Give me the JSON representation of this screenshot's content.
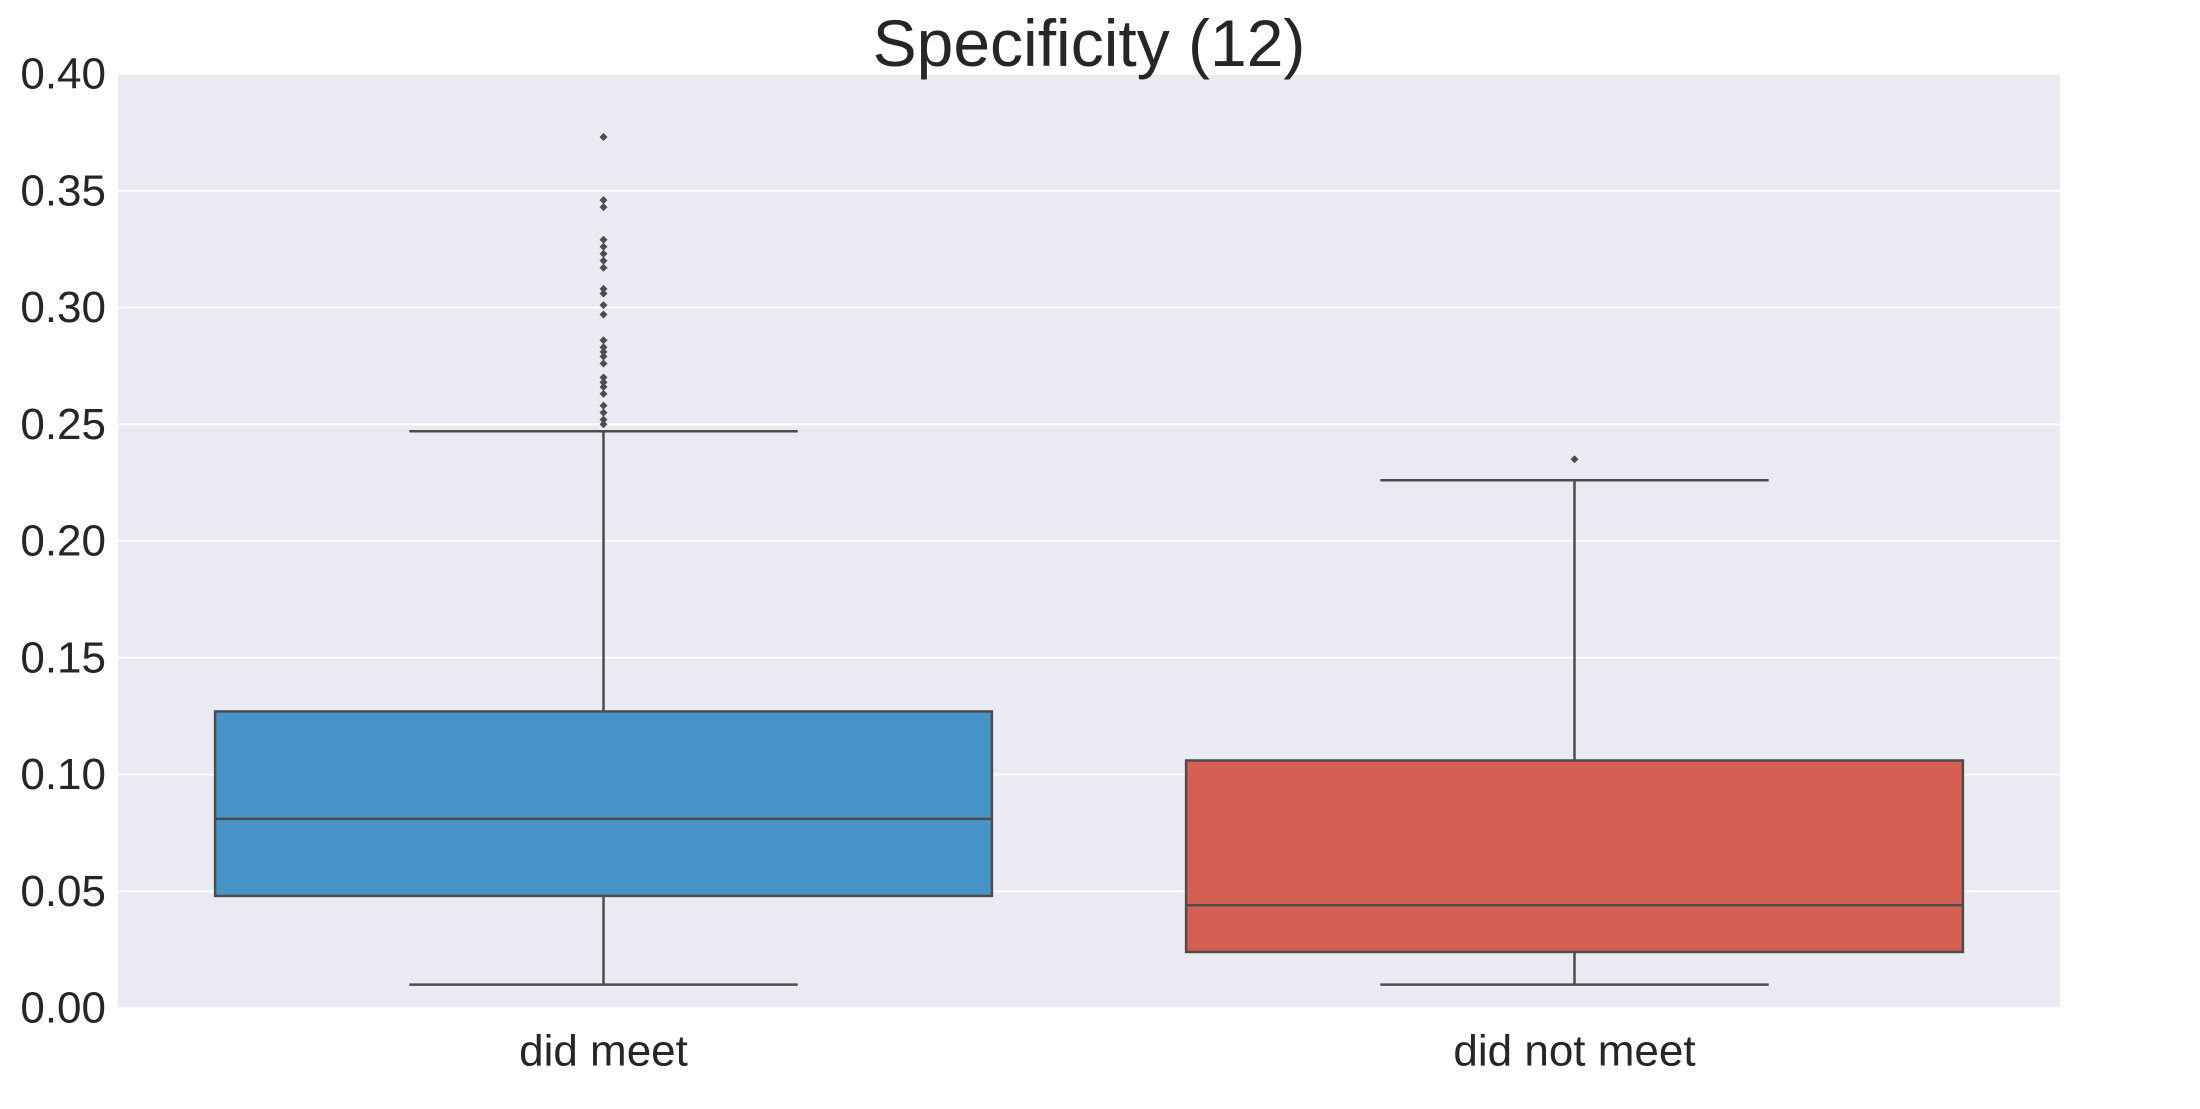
{
  "chart_data": {
    "type": "box",
    "title": "Specificity (12)",
    "xlabel": "",
    "ylabel": "",
    "ylim": [
      0,
      0.4
    ],
    "yticks": [
      "0.00",
      "0.05",
      "0.10",
      "0.15",
      "0.20",
      "0.25",
      "0.30",
      "0.35",
      "0.40"
    ],
    "grid": true,
    "background_color": "#EAEAF2",
    "categories": [
      "did meet",
      "did not meet"
    ],
    "boxes": [
      {
        "label": "did meet",
        "color": "#4795C8",
        "whisker_low": 0.01,
        "q1": 0.048,
        "median": 0.081,
        "q3": 0.127,
        "whisker_high": 0.247,
        "outliers": [
          0.25,
          0.252,
          0.255,
          0.258,
          0.263,
          0.266,
          0.268,
          0.27,
          0.276,
          0.279,
          0.281,
          0.283,
          0.286,
          0.297,
          0.301,
          0.306,
          0.308,
          0.317,
          0.32,
          0.323,
          0.326,
          0.329,
          0.343,
          0.346,
          0.373
        ]
      },
      {
        "label": "did not meet",
        "color": "#D55F52",
        "whisker_low": 0.01,
        "q1": 0.024,
        "median": 0.044,
        "q3": 0.106,
        "whisker_high": 0.226,
        "outliers": [
          0.235
        ]
      }
    ]
  }
}
